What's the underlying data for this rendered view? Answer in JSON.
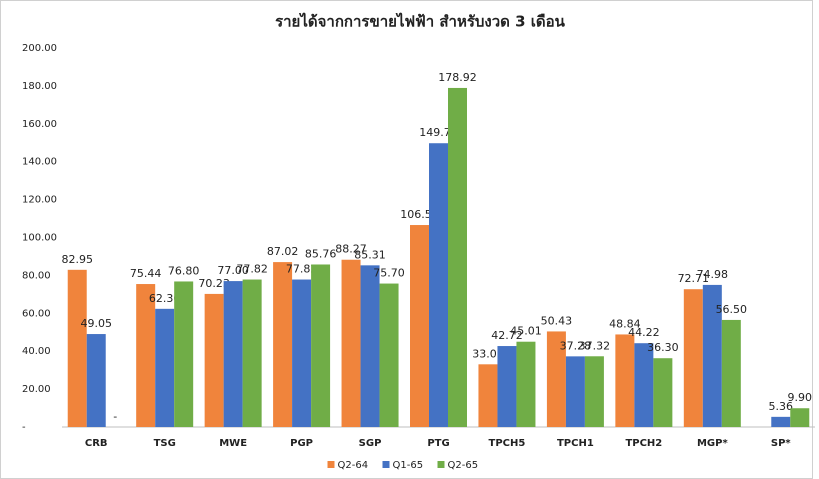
{
  "chart_data": {
    "type": "bar",
    "title": "รายได้จากการขายไฟฟ้า สำหรับงวด 3 เดือน",
    "categories": [
      "CRB",
      "TSG",
      "MWE",
      "PGP",
      "SGP",
      "PTG",
      "TPCH5",
      "TPCH1",
      "TPCH2",
      "MGP*",
      "SP*"
    ],
    "series": [
      {
        "name": "Q2-64",
        "color": "#f0843c",
        "values": [
          82.95,
          75.44,
          70.23,
          87.02,
          88.27,
          106.58,
          33.08,
          50.43,
          48.84,
          72.71,
          null
        ],
        "value_labels": [
          "82.95",
          "75.44",
          "70.23",
          "87.02",
          "88.27",
          "106.58",
          "33.08",
          "50.43",
          "48.84",
          "72.71",
          null
        ]
      },
      {
        "name": "Q1-65",
        "color": "#4472c4",
        "values": [
          49.05,
          62.36,
          77.0,
          77.82,
          85.31,
          149.75,
          42.72,
          37.28,
          44.22,
          74.98,
          5.36
        ],
        "value_labels": [
          "49.05",
          "62.36",
          "77.00",
          "77.82",
          "85.31",
          "149.75",
          "42.72",
          "37.28",
          "44.22",
          "74.98",
          "5.36"
        ]
      },
      {
        "name": "Q2-65",
        "color": "#70ad47",
        "values": [
          0,
          76.8,
          77.82,
          85.76,
          75.7,
          178.92,
          45.01,
          37.32,
          36.3,
          56.5,
          9.9
        ],
        "value_labels": [
          "-",
          "76.80",
          "77.82",
          "85.76",
          "75.70",
          "178.92",
          "45.01",
          "37.32",
          "36.30",
          "56.50",
          "9.90"
        ]
      }
    ],
    "ylim": [
      0,
      200
    ],
    "yticks": [
      {
        "value": 0,
        "label": "-"
      },
      {
        "value": 20,
        "label": "20.00"
      },
      {
        "value": 40,
        "label": "40.00"
      },
      {
        "value": 60,
        "label": "60.00"
      },
      {
        "value": 80,
        "label": "80.00"
      },
      {
        "value": 100,
        "label": "100.00"
      },
      {
        "value": 120,
        "label": "120.00"
      },
      {
        "value": 140,
        "label": "140.00"
      },
      {
        "value": 160,
        "label": "160.00"
      },
      {
        "value": 180,
        "label": "180.00"
      },
      {
        "value": 200,
        "label": "200.00"
      }
    ],
    "legend": "bottom"
  }
}
